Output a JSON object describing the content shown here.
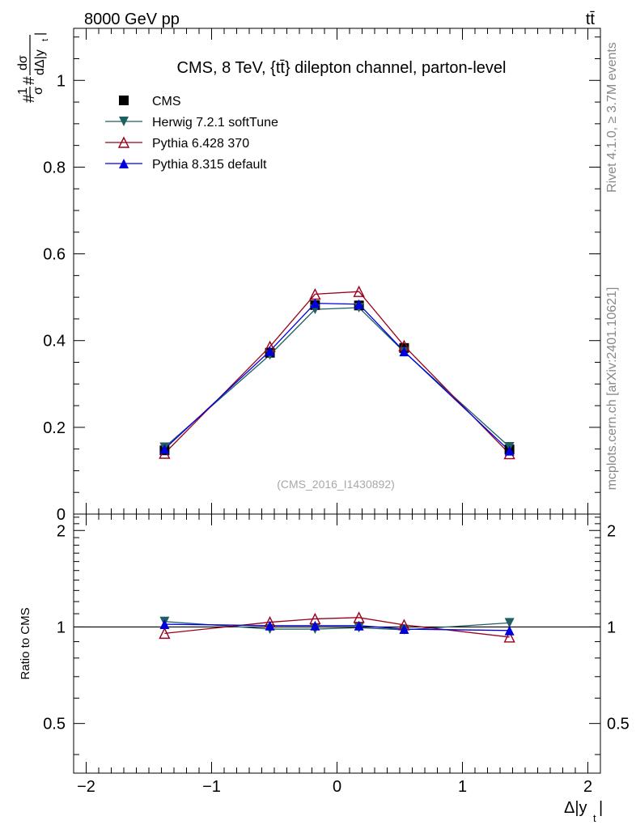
{
  "header": {
    "left": "8000 GeV pp",
    "right": "tt̄"
  },
  "side_text": {
    "rivet": "Rivet 4.1.0, ≥ 3.7M events",
    "mcplots": "mcplots.cern.ch [arXiv:2401.10621]"
  },
  "chart_data": [
    {
      "type": "line",
      "title": "CMS, 8 TeV, {tt̄} dilepton channel, parton-level",
      "watermark": "(CMS_2016_I1430892)",
      "ylabel": "#1/σ# dσ/dΔ|y_t|",
      "ylabel_lines": [
        "#",
        "1",
        "σ",
        "#",
        "dσ",
        "dΔ|y",
        "t",
        "|"
      ],
      "xlim": [
        -2.1,
        2.1
      ],
      "ylim": [
        0,
        1.12
      ],
      "yticks": [
        0,
        0.2,
        0.4,
        0.6,
        0.8,
        1
      ],
      "ytick_labels": [
        "0",
        "0.2",
        "0.4",
        "0.6",
        "0.8",
        "1"
      ],
      "x": [
        -1.375,
        -0.535,
        -0.175,
        0.175,
        0.535,
        1.375
      ],
      "series": [
        {
          "name": "CMS",
          "color": "#000000",
          "marker": "square",
          "values": [
            0.147,
            0.372,
            0.482,
            0.481,
            0.383,
            0.149
          ],
          "errors": [
            0.006,
            0.008,
            0.009,
            0.009,
            0.008,
            0.006
          ]
        },
        {
          "name": "Herwig 7.2.1 softTune",
          "color": "#1f5f5f",
          "marker": "triangle-down",
          "values": [
            0.154,
            0.367,
            0.472,
            0.476,
            0.374,
            0.155
          ]
        },
        {
          "name": "Pythia 6.428 370",
          "color": "#99001a",
          "marker": "triangle-up-open",
          "values": [
            0.14,
            0.386,
            0.507,
            0.513,
            0.388,
            0.139
          ]
        },
        {
          "name": "Pythia 8.315 default",
          "color": "#0000dd",
          "marker": "triangle-up",
          "values": [
            0.15,
            0.376,
            0.486,
            0.484,
            0.375,
            0.146
          ]
        }
      ]
    },
    {
      "type": "line",
      "ylabel": "Ratio to CMS",
      "xlabel": "Δ|y_t|",
      "xlabel_main": "Δ|y",
      "xlabel_sub": "t",
      "xlabel_end": "|",
      "xlim": [
        -2.1,
        2.1
      ],
      "ylim": [
        0.35,
        2.25
      ],
      "yticks": [
        0.5,
        1,
        2
      ],
      "ytick_labels": [
        "0.5",
        "1",
        "2"
      ],
      "xticks": [
        -2,
        -1,
        0,
        1,
        2
      ],
      "xtick_labels": [
        "−2",
        "−1",
        "0",
        "1",
        "2"
      ],
      "x": [
        -1.375,
        -0.535,
        -0.175,
        0.175,
        0.535,
        1.375
      ],
      "series": [
        {
          "name": "Herwig 7.2.1 softTune",
          "color": "#1f5f5f",
          "marker": "triangle-down",
          "values": [
            1.04,
            0.985,
            0.985,
            0.995,
            0.98,
            1.03
          ]
        },
        {
          "name": "Pythia 6.428 370",
          "color": "#99001a",
          "marker": "triangle-up-open",
          "values": [
            0.955,
            1.035,
            1.06,
            1.07,
            1.015,
            0.93
          ]
        },
        {
          "name": "Pythia 8.315 default",
          "color": "#0000dd",
          "marker": "triangle-up",
          "values": [
            1.02,
            1.01,
            1.01,
            1.01,
            0.985,
            0.975
          ]
        }
      ]
    }
  ]
}
